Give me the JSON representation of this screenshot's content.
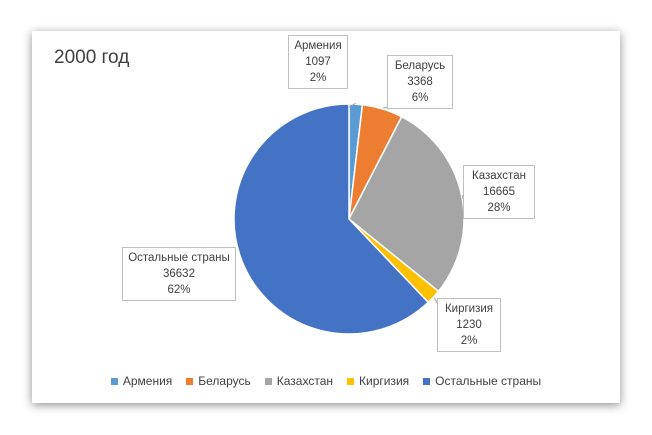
{
  "chart_data": {
    "type": "pie",
    "title": "2000 год",
    "categories": [
      "Армения",
      "Беларусь",
      "Казахстан",
      "Киргизия",
      "Остальные страны"
    ],
    "values": [
      1097,
      3368,
      16665,
      1230,
      36632
    ],
    "percent_labels": [
      "2%",
      "6%",
      "28%",
      "2%",
      "62%"
    ],
    "colors": [
      "#5b9bd5",
      "#ed7d31",
      "#a5a5a5",
      "#ffc000",
      "#4472c4"
    ],
    "legend_position": "bottom",
    "data_labels": "callouts"
  }
}
